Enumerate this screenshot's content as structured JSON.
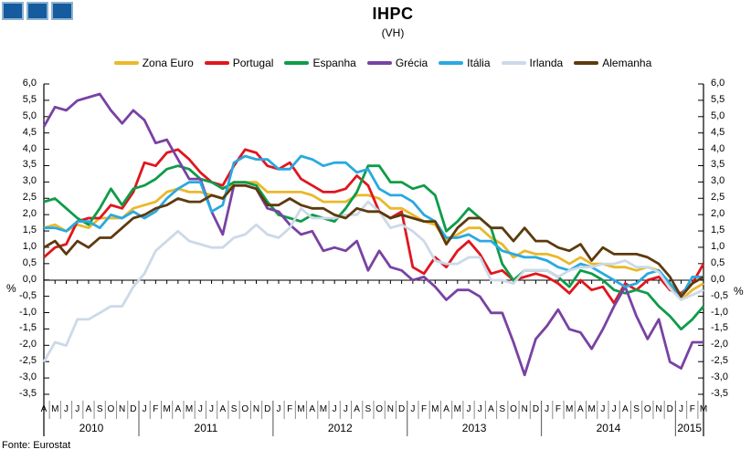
{
  "header": {
    "title": "IHPC",
    "subtitle": "(VH)"
  },
  "logo": {
    "square_count": 3,
    "fill": "#155B9D",
    "border": "#8FB2D1"
  },
  "source_label": "Fonte: Eurostat",
  "axis": {
    "percent_label": "%",
    "ytick_labels": [
      "6,0",
      "5,5",
      "5,0",
      "4,5",
      "4,0",
      "3,5",
      "3,0",
      "2,5",
      "2,0",
      "1,5",
      "1,0",
      "0,5",
      "0,0",
      "-0,5",
      "-1,0",
      "-1,5",
      "-2,0",
      "-2,5",
      "-3,0",
      "-3,5"
    ]
  },
  "chart_data": {
    "type": "line",
    "title": "IHPC",
    "subtitle": "(VH)",
    "ylabel": "%",
    "ylim": [
      -3.5,
      6.0
    ],
    "ytick_step": 0.5,
    "grid": false,
    "legend_position": "top",
    "x_start": "2010-04",
    "x_end": "2015-03",
    "month_letters": [
      "A",
      "M",
      "J",
      "J",
      "A",
      "S",
      "O",
      "N",
      "D",
      "J",
      "F",
      "M",
      "A",
      "M",
      "J",
      "J",
      "A",
      "S",
      "O",
      "N",
      "D",
      "J",
      "F",
      "M",
      "A",
      "M",
      "J",
      "J",
      "A",
      "S",
      "O",
      "N",
      "D",
      "J",
      "F",
      "M",
      "A",
      "M",
      "J",
      "J",
      "A",
      "S",
      "O",
      "N",
      "D",
      "J",
      "F",
      "M",
      "A",
      "M",
      "J",
      "J",
      "A",
      "S",
      "O",
      "N",
      "D",
      "J",
      "F",
      "M"
    ],
    "years": [
      {
        "label": "2010",
        "start": 0,
        "end": 8
      },
      {
        "label": "2011",
        "start": 9,
        "end": 20
      },
      {
        "label": "2012",
        "start": 21,
        "end": 32
      },
      {
        "label": "2013",
        "start": 33,
        "end": 44
      },
      {
        "label": "2014",
        "start": 45,
        "end": 56
      },
      {
        "label": "2015",
        "start": 57,
        "end": 59
      }
    ],
    "series": [
      {
        "name": "Zona Euro",
        "color": "#EAB829",
        "values": [
          1.6,
          1.7,
          1.5,
          1.7,
          1.6,
          1.9,
          1.9,
          1.9,
          2.2,
          2.3,
          2.4,
          2.7,
          2.8,
          2.7,
          2.7,
          2.6,
          2.5,
          3.0,
          3.0,
          3.0,
          2.7,
          2.7,
          2.7,
          2.7,
          2.6,
          2.4,
          2.4,
          2.4,
          2.6,
          2.6,
          2.5,
          2.2,
          2.2,
          2.0,
          1.8,
          1.7,
          1.2,
          1.4,
          1.6,
          1.6,
          1.3,
          1.1,
          0.7,
          0.9,
          0.8,
          0.8,
          0.7,
          0.5,
          0.7,
          0.5,
          0.5,
          0.4,
          0.4,
          0.3,
          0.4,
          0.3,
          -0.2,
          -0.6,
          -0.3,
          -0.1
        ]
      },
      {
        "name": "Portugal",
        "color": "#E0161F",
        "values": [
          0.7,
          1.0,
          1.1,
          1.8,
          1.9,
          1.9,
          2.3,
          2.2,
          2.7,
          3.6,
          3.5,
          3.9,
          4.0,
          3.7,
          3.3,
          3.0,
          2.9,
          3.5,
          4.0,
          3.9,
          3.5,
          3.4,
          3.6,
          3.1,
          2.9,
          2.7,
          2.7,
          2.8,
          3.2,
          2.9,
          2.1,
          1.9,
          2.1,
          0.4,
          0.2,
          0.7,
          0.4,
          0.9,
          1.2,
          0.8,
          0.2,
          0.3,
          0.0,
          0.1,
          0.2,
          0.1,
          -0.1,
          -0.4,
          0.0,
          -0.3,
          -0.2,
          -0.7,
          -0.1,
          -0.3,
          0.0,
          0.1,
          -0.3,
          -0.4,
          -0.1,
          0.5
        ]
      },
      {
        "name": "Espanha",
        "color": "#0E9C49",
        "values": [
          2.4,
          2.5,
          2.2,
          1.9,
          1.7,
          2.2,
          2.8,
          2.3,
          2.8,
          2.9,
          3.1,
          3.4,
          3.5,
          3.4,
          3.1,
          3.0,
          2.8,
          3.0,
          3.0,
          2.9,
          2.4,
          2.0,
          1.9,
          1.8,
          2.0,
          1.9,
          1.8,
          2.2,
          2.7,
          3.5,
          3.5,
          3.0,
          3.0,
          2.8,
          2.9,
          2.6,
          1.5,
          1.8,
          2.2,
          1.9,
          1.6,
          0.5,
          0.0,
          0.3,
          0.3,
          0.3,
          0.1,
          -0.2,
          0.3,
          0.2,
          0.0,
          -0.3,
          -0.4,
          -0.3,
          -0.4,
          -0.8,
          -1.1,
          -1.5,
          -1.2,
          -0.8
        ]
      },
      {
        "name": "Grécia",
        "color": "#7842A3",
        "values": [
          4.7,
          5.3,
          5.2,
          5.5,
          5.6,
          5.7,
          5.2,
          4.8,
          5.2,
          4.9,
          4.2,
          4.3,
          3.7,
          3.1,
          3.1,
          2.1,
          1.4,
          2.9,
          2.9,
          2.8,
          2.2,
          2.1,
          1.7,
          1.4,
          1.5,
          0.9,
          1.0,
          0.9,
          1.2,
          0.3,
          0.9,
          0.4,
          0.3,
          0.0,
          0.1,
          -0.2,
          -0.6,
          -0.3,
          -0.3,
          -0.5,
          -1.0,
          -1.0,
          -1.9,
          -2.9,
          -1.8,
          -1.4,
          -0.9,
          -1.5,
          -1.6,
          -2.1,
          -1.5,
          -0.8,
          -0.2,
          -1.1,
          -1.8,
          -1.2,
          -2.5,
          -2.7,
          -1.9,
          -1.9
        ]
      },
      {
        "name": "Itália",
        "color": "#29A9E1",
        "values": [
          1.6,
          1.6,
          1.5,
          1.8,
          1.8,
          1.6,
          2.0,
          1.9,
          2.1,
          1.9,
          2.1,
          2.5,
          2.8,
          3.0,
          3.0,
          2.1,
          2.3,
          3.6,
          3.8,
          3.7,
          3.7,
          3.4,
          3.4,
          3.8,
          3.7,
          3.5,
          3.6,
          3.6,
          3.3,
          3.4,
          2.8,
          2.6,
          2.6,
          2.4,
          2.0,
          1.8,
          1.3,
          1.3,
          1.4,
          1.2,
          1.2,
          0.9,
          0.8,
          0.7,
          0.7,
          0.6,
          0.4,
          0.3,
          0.5,
          0.4,
          0.2,
          0.0,
          -0.2,
          -0.1,
          0.2,
          0.3,
          -0.1,
          -0.5,
          0.1,
          0.1
        ]
      },
      {
        "name": "Irlanda",
        "color": "#CCD9E9",
        "values": [
          -2.5,
          -1.9,
          -2.0,
          -1.2,
          -1.2,
          -1.0,
          -0.8,
          -0.8,
          -0.2,
          0.2,
          0.9,
          1.2,
          1.5,
          1.2,
          1.1,
          1.0,
          1.0,
          1.3,
          1.4,
          1.7,
          1.4,
          1.3,
          1.6,
          2.2,
          1.9,
          1.9,
          1.9,
          2.0,
          2.0,
          2.4,
          2.1,
          1.6,
          1.7,
          1.5,
          1.2,
          0.6,
          0.5,
          0.5,
          0.7,
          0.7,
          0.0,
          0.0,
          -0.1,
          0.3,
          0.3,
          0.3,
          0.1,
          0.3,
          0.4,
          0.4,
          0.5,
          0.5,
          0.6,
          0.4,
          0.4,
          0.25,
          -0.25,
          -0.6,
          -0.45,
          -0.3
        ]
      },
      {
        "name": "Alemanha",
        "color": "#5D3A0D",
        "values": [
          1.0,
          1.2,
          0.8,
          1.2,
          1.0,
          1.3,
          1.3,
          1.6,
          1.9,
          2.0,
          2.2,
          2.3,
          2.5,
          2.4,
          2.4,
          2.6,
          2.5,
          2.9,
          2.9,
          2.8,
          2.3,
          2.3,
          2.5,
          2.3,
          2.2,
          2.2,
          2.0,
          1.9,
          2.2,
          2.1,
          2.1,
          1.9,
          2.0,
          1.9,
          1.8,
          1.8,
          1.1,
          1.6,
          1.9,
          1.9,
          1.6,
          1.6,
          1.2,
          1.6,
          1.2,
          1.2,
          1.0,
          0.9,
          1.1,
          0.6,
          1.0,
          0.8,
          0.8,
          0.8,
          0.7,
          0.5,
          0.1,
          -0.5,
          -0.1,
          0.1
        ]
      }
    ]
  }
}
